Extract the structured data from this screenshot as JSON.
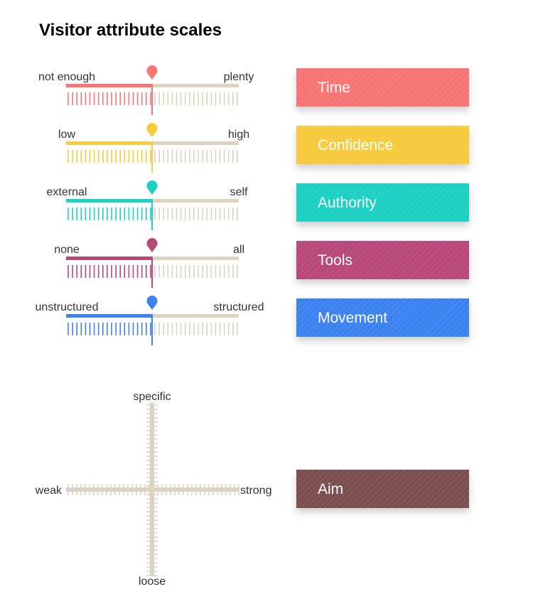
{
  "header": {
    "title": "Visitor attribute scales"
  },
  "scales": [
    {
      "label": "Time",
      "left": "not enough",
      "right": "plenty",
      "color": "#f87575"
    },
    {
      "label": "Confidence",
      "left": "low",
      "right": "high",
      "color": "#f7cb3c"
    },
    {
      "label": "Authority",
      "left": "external",
      "right": "self",
      "color": "#1dd0c2"
    },
    {
      "label": "Tools",
      "left": "none",
      "right": "all",
      "color": "#b84878"
    },
    {
      "label": "Movement",
      "left": "unstructured",
      "right": "structured",
      "color": "#3d83f0"
    }
  ],
  "aim": {
    "label": "Aim",
    "top": "specific",
    "bottom": "loose",
    "left": "weak",
    "right": "strong",
    "color": "#7b5050"
  }
}
